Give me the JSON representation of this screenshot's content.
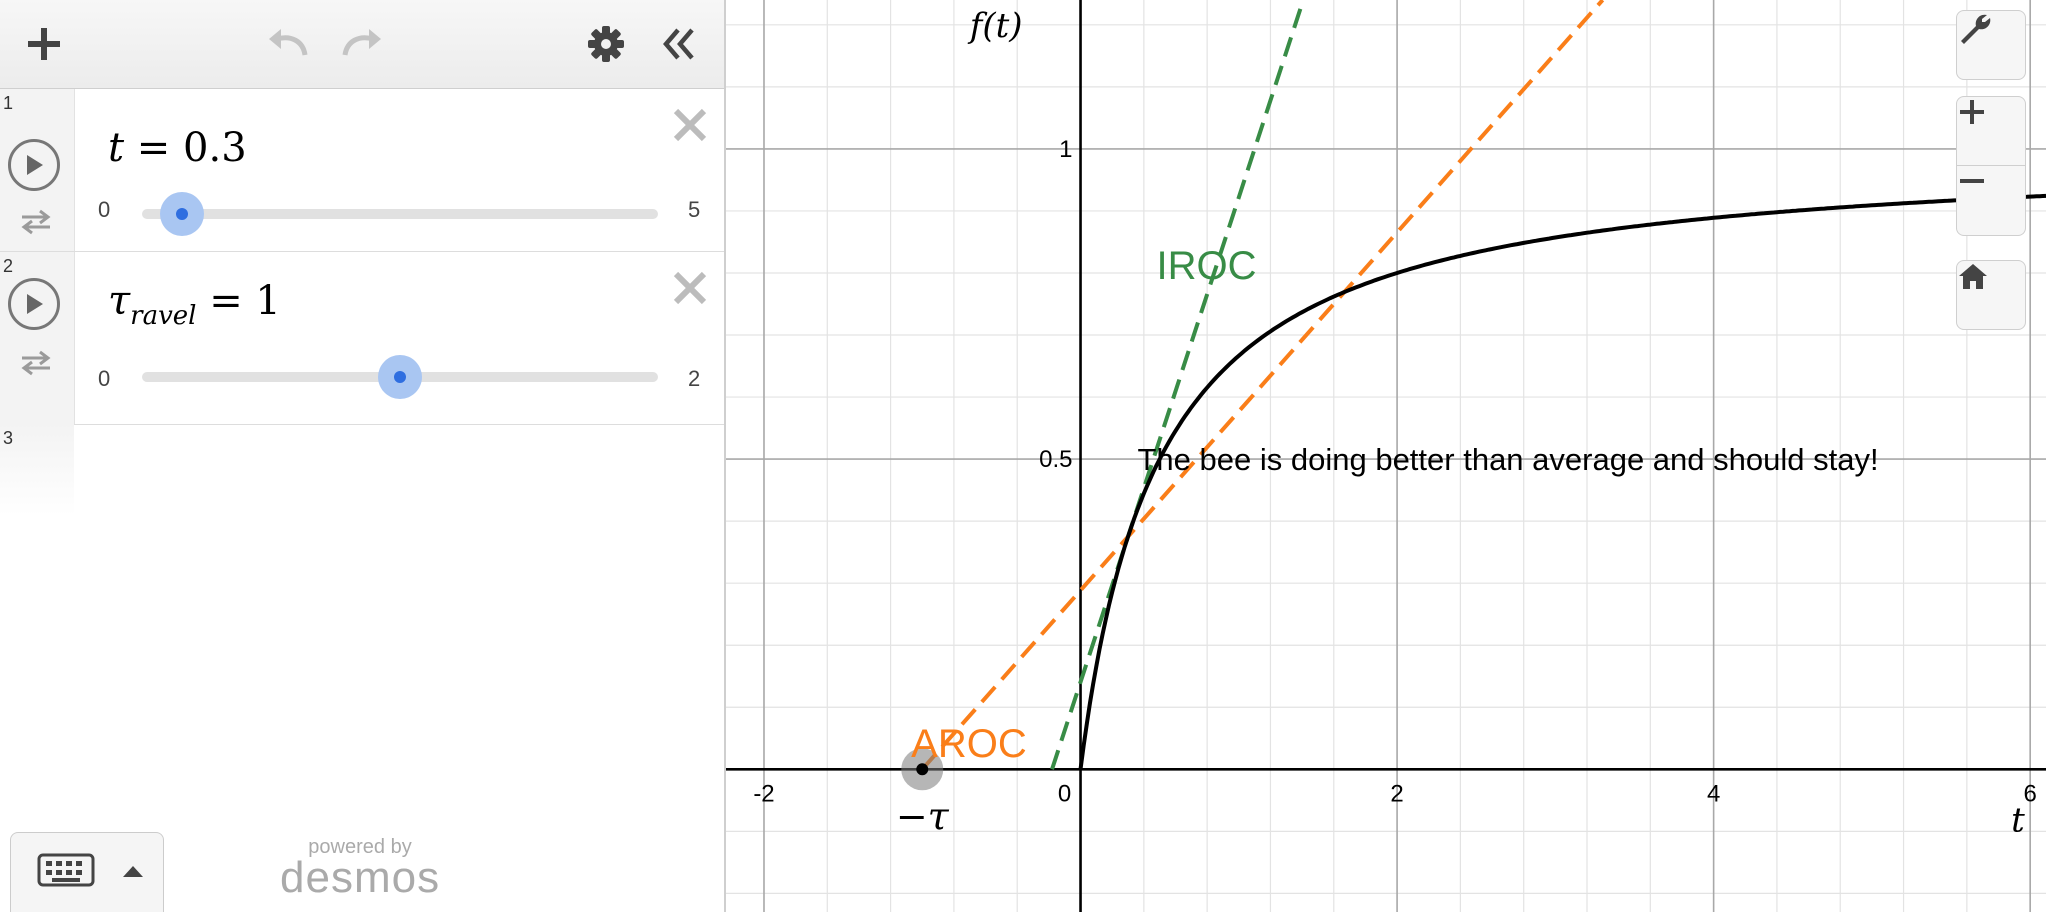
{
  "expressions": [
    {
      "index": "1",
      "variable": "t",
      "subscript": "",
      "value": "0.3",
      "slider": {
        "min": "0",
        "max": "5",
        "fraction": 0.06
      }
    },
    {
      "index": "2",
      "variable": "τ",
      "subscript": "ravel",
      "value": "1",
      "slider": {
        "min": "0",
        "max": "2",
        "fraction": 0.5
      }
    },
    {
      "index": "3"
    }
  ],
  "branding": {
    "powered_by": "powered by",
    "name": "desmos"
  },
  "icons": {
    "add": "plus-icon",
    "undo": "undo-icon",
    "redo": "redo-icon",
    "settings": "gear-icon",
    "collapse": "double-chevron-left-icon",
    "play": "play-icon",
    "loop": "loop-icon",
    "delete": "close-icon",
    "keyboard": "keyboard-icon",
    "wrench": "wrench-icon",
    "zoom_in": "plus-icon",
    "zoom_out": "minus-icon",
    "home": "home-icon"
  },
  "graph": {
    "x_axis_label": "t",
    "y_axis_label": "f(t)",
    "x_ticks": [
      "-2",
      "0",
      "2",
      "4",
      "6"
    ],
    "y_ticks": [
      "0.5",
      "1"
    ],
    "x_range": [
      -2.24,
      6.1
    ],
    "y_range": [
      -0.23,
      1.24
    ],
    "grid": true,
    "colors": {
      "iroc": "#388c46",
      "aroc": "#fa7e19",
      "curve": "#000000"
    },
    "labels": {
      "iroc": "IROC",
      "aroc": "AROC",
      "neg_tau": "−τ",
      "message": "The bee is doing better than average and should stay!"
    }
  }
}
